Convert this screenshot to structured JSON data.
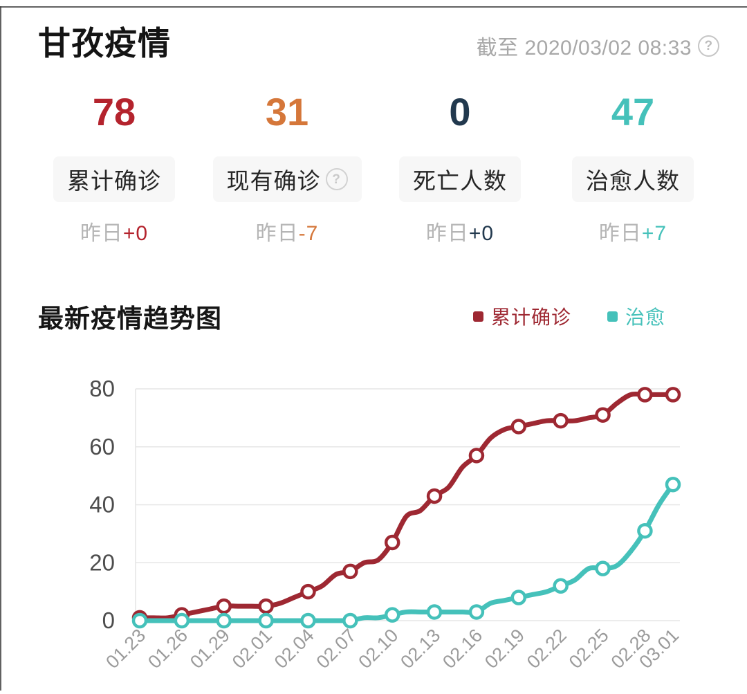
{
  "header": {
    "title": "甘孜疫情",
    "as_of": "截至 2020/03/02 08:33",
    "help_glyph": "?"
  },
  "stats": [
    {
      "value": "78",
      "label": "累计确诊",
      "yesterday_label": "昨日",
      "delta": "+0",
      "color": "#b4232d"
    },
    {
      "value": "31",
      "label": "现有确诊",
      "yesterday_label": "昨日",
      "delta": "-7",
      "color": "#d5773a",
      "help_glyph": "?"
    },
    {
      "value": "0",
      "label": "死亡人数",
      "yesterday_label": "昨日",
      "delta": "+0",
      "color": "#22394e"
    },
    {
      "value": "47",
      "label": "治愈人数",
      "yesterday_label": "昨日",
      "delta": "+7",
      "color": "#45c1ba"
    }
  ],
  "trend_section": {
    "title": "最新疫情趋势图"
  },
  "chart_data": {
    "type": "line",
    "title": "最新疫情趋势图",
    "x": [
      "01.23",
      "01.24",
      "01.25",
      "01.26",
      "01.27",
      "01.28",
      "01.29",
      "01.30",
      "01.31",
      "02.01",
      "02.02",
      "02.03",
      "02.04",
      "02.05",
      "02.06",
      "02.07",
      "02.08",
      "02.09",
      "02.10",
      "02.11",
      "02.12",
      "02.13",
      "02.14",
      "02.15",
      "02.16",
      "02.17",
      "02.18",
      "02.19",
      "02.20",
      "02.21",
      "02.22",
      "02.23",
      "02.24",
      "02.25",
      "02.26",
      "02.27",
      "02.28",
      "02.29",
      "03.01"
    ],
    "x_label_indices": [
      0,
      3,
      6,
      9,
      12,
      15,
      18,
      21,
      24,
      27,
      30,
      33,
      36,
      38
    ],
    "ylim": [
      0,
      80
    ],
    "yticks": [
      0,
      20,
      40,
      60,
      80
    ],
    "grid": true,
    "smooth": true,
    "legend_position": "top-right",
    "marker_every": 3,
    "series": [
      {
        "name": "累计确诊",
        "color": "#9e2832",
        "values": [
          1,
          1,
          1,
          2,
          3,
          4,
          5,
          5,
          5,
          5,
          6,
          8,
          10,
          12,
          16,
          17,
          20,
          21,
          27,
          36,
          38,
          43,
          46,
          53,
          57,
          63,
          66,
          67,
          68,
          69,
          69,
          69,
          70,
          71,
          75,
          78,
          78,
          78,
          78
        ]
      },
      {
        "name": "治愈",
        "color": "#45c1ba",
        "values": [
          0,
          0,
          0,
          0,
          0,
          0,
          0,
          0,
          0,
          0,
          0,
          0,
          0,
          0,
          0,
          0,
          1,
          1,
          2,
          3,
          3,
          3,
          3,
          3,
          3,
          6,
          7,
          8,
          9,
          10,
          12,
          14,
          18,
          18,
          19,
          24,
          31,
          40,
          47
        ]
      }
    ],
    "axis_colors": {
      "grid": "#e6e6e6",
      "y_label": "#4d4d4d",
      "x_label": "#9b9b9b"
    }
  }
}
